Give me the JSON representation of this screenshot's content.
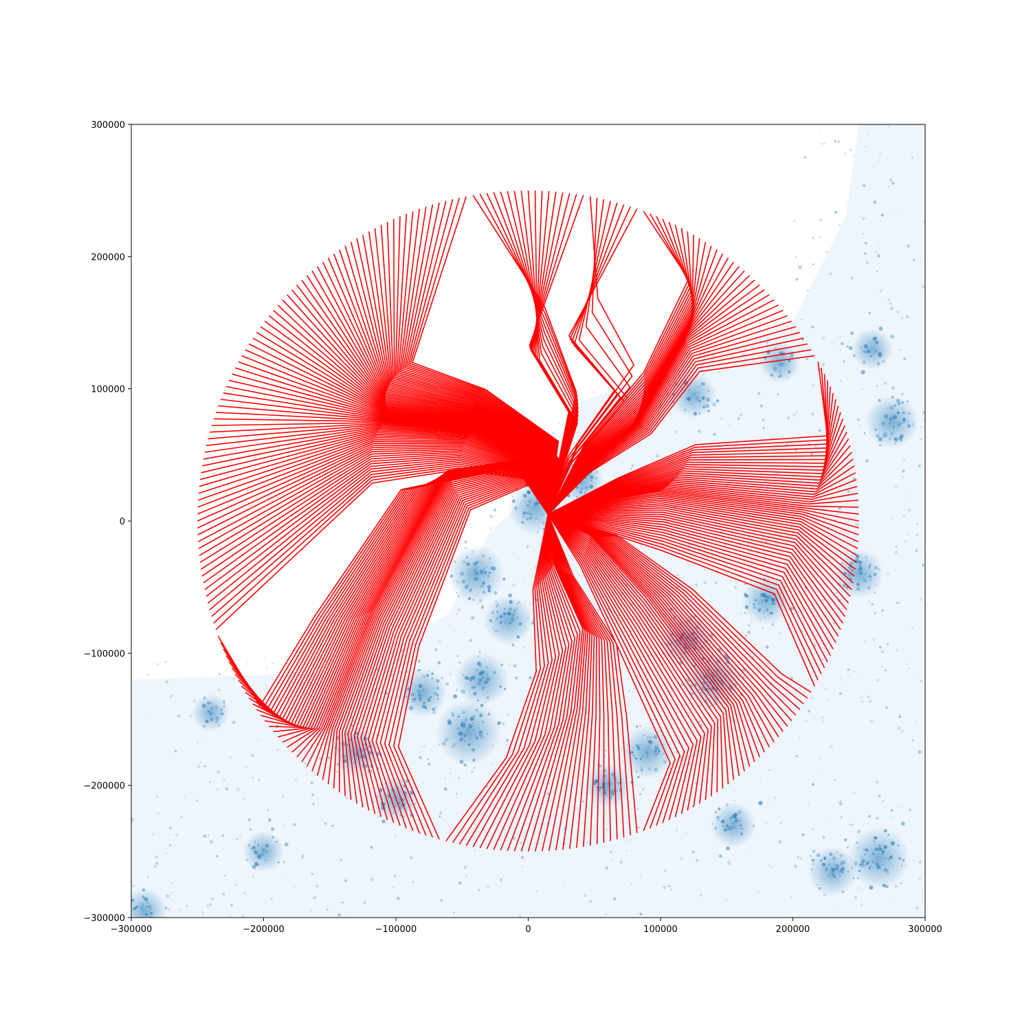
{
  "chart_data": {
    "type": "line",
    "title": "",
    "xlabel": "",
    "ylabel": "",
    "xlim": [
      -300000,
      300000
    ],
    "ylim": [
      -300000,
      300000
    ],
    "x_ticks": [
      -300000,
      -200000,
      -100000,
      0,
      100000,
      200000,
      300000
    ],
    "y_ticks": [
      -300000,
      -200000,
      -100000,
      0,
      100000,
      200000,
      300000
    ],
    "x_tick_labels": [
      "−300000",
      "−200000",
      "−100000",
      "0",
      "100000",
      "200000",
      "300000"
    ],
    "y_tick_labels": [
      "−300000",
      "−200000",
      "−100000",
      "0",
      "100000",
      "200000",
      "300000"
    ],
    "grid": false,
    "legend": "none",
    "background_density": {
      "type": "scatter",
      "color": "#1f77b4",
      "description_role": "population density points",
      "clusters": [
        {
          "x": -45000,
          "y": -160000,
          "weight": 1.0
        },
        {
          "x": -35000,
          "y": -120000,
          "weight": 0.7
        },
        {
          "x": -80000,
          "y": -130000,
          "weight": 0.6
        },
        {
          "x": -130000,
          "y": -175000,
          "weight": 0.6
        },
        {
          "x": -100000,
          "y": -210000,
          "weight": 0.5
        },
        {
          "x": -40000,
          "y": -40000,
          "weight": 0.8
        },
        {
          "x": -15000,
          "y": -75000,
          "weight": 0.6
        },
        {
          "x": 5000,
          "y": 10000,
          "weight": 0.7
        },
        {
          "x": 40000,
          "y": 30000,
          "weight": 0.5
        },
        {
          "x": 140000,
          "y": -120000,
          "weight": 0.9
        },
        {
          "x": 120000,
          "y": -90000,
          "weight": 0.8
        },
        {
          "x": 90000,
          "y": -175000,
          "weight": 0.7
        },
        {
          "x": 60000,
          "y": -200000,
          "weight": 0.5
        },
        {
          "x": 180000,
          "y": -60000,
          "weight": 0.6
        },
        {
          "x": 250000,
          "y": -40000,
          "weight": 0.6
        },
        {
          "x": 265000,
          "y": -255000,
          "weight": 0.9
        },
        {
          "x": 230000,
          "y": -265000,
          "weight": 0.6
        },
        {
          "x": 275000,
          "y": 75000,
          "weight": 0.7
        },
        {
          "x": 260000,
          "y": 130000,
          "weight": 0.4
        },
        {
          "x": 125000,
          "y": 95000,
          "weight": 0.5
        },
        {
          "x": -200000,
          "y": -250000,
          "weight": 0.4
        },
        {
          "x": -290000,
          "y": -295000,
          "weight": 0.5
        },
        {
          "x": -240000,
          "y": -145000,
          "weight": 0.3
        },
        {
          "x": 155000,
          "y": -230000,
          "weight": 0.5
        },
        {
          "x": 190000,
          "y": 120000,
          "weight": 0.4
        }
      ]
    },
    "series": [
      {
        "color": "#ff0000",
        "style": "radial flow paths from circle of radius 250000 to sink near (15000, 5000)",
        "radius": 250000,
        "sink": [
          15000,
          5000
        ],
        "path_count": 300,
        "waypoint_groups": [
          {
            "from_angle_deg": 80,
            "to_angle_deg": 100,
            "waypoints": [
              [
                10000,
                100000
              ],
              [
                40000,
                60000
              ]
            ]
          },
          {
            "from_angle_deg": 100,
            "to_angle_deg": 200,
            "waypoints": [
              [
                -80000,
                70000
              ],
              [
                -10000,
                65000
              ],
              [
                40000,
                40000
              ]
            ]
          },
          {
            "from_angle_deg": 200,
            "to_angle_deg": 255,
            "waypoints": [
              [
                -150000,
                -150000
              ],
              [
                -110000,
                -50000
              ],
              [
                -50000,
                60000
              ],
              [
                20000,
                60000
              ]
            ]
          },
          {
            "from_angle_deg": 255,
            "to_angle_deg": 290,
            "waypoints": [
              [
                40000,
                -120000
              ],
              [
                45000,
                -60000
              ],
              [
                20000,
                -20000
              ]
            ]
          },
          {
            "from_angle_deg": 290,
            "to_angle_deg": 330,
            "waypoints": [
              [
                150000,
                -130000
              ],
              [
                80000,
                -40000
              ],
              [
                40000,
                0
              ]
            ]
          },
          {
            "from_angle_deg": 330,
            "to_angle_deg": 30,
            "waypoints": [
              [
                200000,
                10000
              ],
              [
                80000,
                25000
              ],
              [
                40000,
                15000
              ]
            ]
          },
          {
            "from_angle_deg": 30,
            "to_angle_deg": 70,
            "waypoints": [
              [
                110000,
                130000
              ],
              [
                70000,
                60000
              ],
              [
                30000,
                30000
              ]
            ]
          },
          {
            "from_angle_deg": 70,
            "to_angle_deg": 80,
            "waypoints": [
              [
                30000,
                110000
              ],
              [
                75000,
                70000
              ],
              [
                30000,
                30000
              ]
            ]
          }
        ]
      }
    ]
  }
}
